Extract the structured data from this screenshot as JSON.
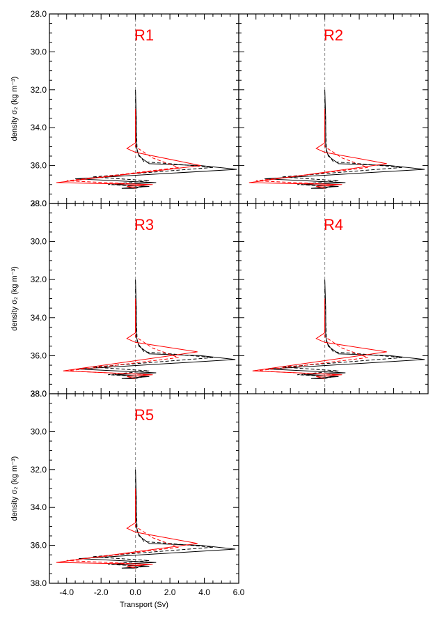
{
  "chart_data": {
    "type": "line",
    "ylabel": "density σ₂ (kg m⁻³)",
    "xlabel": "Transport (Sv)",
    "xlim": [
      -5,
      6
    ],
    "ylim": [
      28,
      38
    ],
    "y_inverted": true,
    "xticks": [
      "-4.0",
      "-2.0",
      "0.0",
      "2.0",
      "4.0",
      "6.0"
    ],
    "yticks": [
      "28.0",
      "30.0",
      "32.0",
      "34.0",
      "36.0",
      "38.0"
    ],
    "colors": {
      "black": "#000000",
      "red": "#ff0000",
      "zero_line": "#888888"
    },
    "panels": [
      {
        "title": "R1",
        "series": [
          {
            "color": "black",
            "style": "solid",
            "points": [
              [
                0,
                32
              ],
              [
                0.05,
                33.5
              ],
              [
                0.05,
                35.0
              ],
              [
                0.2,
                35.5
              ],
              [
                0.8,
                35.9
              ],
              [
                3.8,
                36.0
              ],
              [
                5.9,
                36.2
              ],
              [
                -3.5,
                36.7
              ],
              [
                1.2,
                36.9
              ],
              [
                -1.2,
                37.0
              ],
              [
                0.8,
                37.1
              ],
              [
                -0.8,
                37.2
              ],
              [
                0,
                37.2
              ]
            ]
          },
          {
            "color": "black",
            "style": "dashed",
            "points": [
              [
                0,
                32.5
              ],
              [
                0.05,
                34.0
              ],
              [
                0.1,
                35.3
              ],
              [
                0.5,
                35.8
              ],
              [
                2.0,
                35.9
              ],
              [
                4.5,
                36.1
              ],
              [
                -2.5,
                36.6
              ],
              [
                0.8,
                36.8
              ],
              [
                -1.6,
                37.0
              ],
              [
                0.5,
                37.1
              ],
              [
                0,
                37.2
              ]
            ]
          },
          {
            "color": "red",
            "style": "solid",
            "points": [
              [
                0,
                33.0
              ],
              [
                0,
                34.8
              ],
              [
                -0.5,
                35.1
              ],
              [
                0,
                35.3
              ],
              [
                3.8,
                36.0
              ],
              [
                -4.6,
                36.9
              ],
              [
                1.0,
                37.0
              ],
              [
                -0.5,
                37.1
              ],
              [
                0,
                37.2
              ]
            ]
          },
          {
            "color": "red",
            "style": "dashed",
            "points": [
              [
                0,
                34.0
              ],
              [
                0,
                35.0
              ],
              [
                1.0,
                35.6
              ],
              [
                2.5,
                36.1
              ],
              [
                -2.0,
                36.6
              ],
              [
                -4.0,
                36.8
              ],
              [
                0.7,
                37.0
              ],
              [
                0,
                37.1
              ]
            ]
          }
        ]
      },
      {
        "title": "R2",
        "series": [
          {
            "color": "black",
            "style": "solid",
            "points": [
              [
                0,
                32
              ],
              [
                0.05,
                33.5
              ],
              [
                0.05,
                35.0
              ],
              [
                0.2,
                35.5
              ],
              [
                0.8,
                35.9
              ],
              [
                3.8,
                36.0
              ],
              [
                5.8,
                36.2
              ],
              [
                -3.5,
                36.7
              ],
              [
                1.2,
                36.9
              ],
              [
                -1.2,
                37.0
              ],
              [
                0.8,
                37.1
              ],
              [
                -0.8,
                37.2
              ],
              [
                0,
                37.2
              ]
            ]
          },
          {
            "color": "black",
            "style": "dashed",
            "points": [
              [
                0,
                32.5
              ],
              [
                0.05,
                34.0
              ],
              [
                0.1,
                35.3
              ],
              [
                0.5,
                35.8
              ],
              [
                2.0,
                35.9
              ],
              [
                4.5,
                36.1
              ],
              [
                -2.5,
                36.6
              ],
              [
                0.8,
                36.8
              ],
              [
                -1.6,
                37.0
              ],
              [
                0.5,
                37.1
              ],
              [
                0,
                37.2
              ]
            ]
          },
          {
            "color": "red",
            "style": "solid",
            "points": [
              [
                0,
                33.0
              ],
              [
                0,
                34.8
              ],
              [
                -0.5,
                35.1
              ],
              [
                0,
                35.3
              ],
              [
                3.6,
                35.9
              ],
              [
                -4.4,
                36.9
              ],
              [
                1.0,
                37.0
              ],
              [
                -0.5,
                37.1
              ],
              [
                0,
                37.2
              ]
            ]
          },
          {
            "color": "red",
            "style": "dashed",
            "points": [
              [
                0,
                34.0
              ],
              [
                0,
                35.0
              ],
              [
                1.0,
                35.6
              ],
              [
                2.5,
                36.1
              ],
              [
                -2.0,
                36.6
              ],
              [
                -4.0,
                36.8
              ],
              [
                0.7,
                37.0
              ],
              [
                0,
                37.1
              ]
            ]
          }
        ]
      },
      {
        "title": "R3",
        "series": [
          {
            "color": "black",
            "style": "solid",
            "points": [
              [
                0,
                32
              ],
              [
                0.05,
                33.5
              ],
              [
                0.05,
                35.0
              ],
              [
                0.2,
                35.5
              ],
              [
                0.8,
                35.9
              ],
              [
                3.8,
                36.0
              ],
              [
                5.8,
                36.2
              ],
              [
                -3.3,
                36.7
              ],
              [
                1.2,
                36.9
              ],
              [
                -1.2,
                37.0
              ],
              [
                0.8,
                37.1
              ],
              [
                -0.8,
                37.2
              ],
              [
                0,
                37.2
              ]
            ]
          },
          {
            "color": "black",
            "style": "dashed",
            "points": [
              [
                0,
                32.5
              ],
              [
                0.05,
                34.0
              ],
              [
                0.1,
                35.3
              ],
              [
                0.5,
                35.8
              ],
              [
                2.0,
                35.9
              ],
              [
                4.5,
                36.1
              ],
              [
                -2.5,
                36.6
              ],
              [
                0.8,
                36.8
              ],
              [
                -1.6,
                37.0
              ],
              [
                0.5,
                37.1
              ],
              [
                0,
                37.2
              ]
            ]
          },
          {
            "color": "red",
            "style": "solid",
            "points": [
              [
                0,
                33.0
              ],
              [
                0,
                34.8
              ],
              [
                -0.5,
                35.1
              ],
              [
                0,
                35.3
              ],
              [
                3.6,
                35.8
              ],
              [
                -4.2,
                36.8
              ],
              [
                1.0,
                37.0
              ],
              [
                -0.5,
                37.1
              ],
              [
                0,
                37.2
              ]
            ]
          },
          {
            "color": "red",
            "style": "dashed",
            "points": [
              [
                0,
                34.0
              ],
              [
                0,
                35.0
              ],
              [
                1.0,
                35.6
              ],
              [
                2.5,
                36.1
              ],
              [
                -2.0,
                36.6
              ],
              [
                -4.0,
                36.8
              ],
              [
                0.7,
                37.0
              ],
              [
                0,
                37.1
              ]
            ]
          }
        ]
      },
      {
        "title": "R4",
        "series": [
          {
            "color": "black",
            "style": "solid",
            "points": [
              [
                0,
                32
              ],
              [
                0.05,
                33.5
              ],
              [
                0.05,
                35.0
              ],
              [
                0.2,
                35.5
              ],
              [
                0.8,
                35.9
              ],
              [
                3.8,
                36.0
              ],
              [
                5.8,
                36.2
              ],
              [
                -3.3,
                36.7
              ],
              [
                1.2,
                36.9
              ],
              [
                -1.2,
                37.0
              ],
              [
                0.8,
                37.1
              ],
              [
                -0.8,
                37.2
              ],
              [
                0,
                37.2
              ]
            ]
          },
          {
            "color": "black",
            "style": "dashed",
            "points": [
              [
                0,
                32.5
              ],
              [
                0.05,
                34.0
              ],
              [
                0.1,
                35.3
              ],
              [
                0.5,
                35.8
              ],
              [
                2.0,
                35.9
              ],
              [
                4.5,
                36.1
              ],
              [
                -2.5,
                36.6
              ],
              [
                0.8,
                36.8
              ],
              [
                -1.6,
                37.0
              ],
              [
                0.5,
                37.1
              ],
              [
                0,
                37.2
              ]
            ]
          },
          {
            "color": "red",
            "style": "solid",
            "points": [
              [
                0,
                33.0
              ],
              [
                0,
                34.8
              ],
              [
                -0.5,
                35.1
              ],
              [
                0,
                35.3
              ],
              [
                3.6,
                35.8
              ],
              [
                -4.2,
                36.8
              ],
              [
                1.0,
                37.0
              ],
              [
                -0.5,
                37.1
              ],
              [
                0,
                37.2
              ]
            ]
          },
          {
            "color": "red",
            "style": "dashed",
            "points": [
              [
                0,
                34.0
              ],
              [
                0,
                35.0
              ],
              [
                1.0,
                35.6
              ],
              [
                2.5,
                36.1
              ],
              [
                -2.0,
                36.6
              ],
              [
                -4.0,
                36.8
              ],
              [
                0.7,
                37.0
              ],
              [
                0,
                37.1
              ]
            ]
          }
        ]
      },
      {
        "title": "R5",
        "series": [
          {
            "color": "black",
            "style": "solid",
            "points": [
              [
                0,
                32
              ],
              [
                0.05,
                33.5
              ],
              [
                0.05,
                35.0
              ],
              [
                0.2,
                35.5
              ],
              [
                0.8,
                35.9
              ],
              [
                3.8,
                36.0
              ],
              [
                5.8,
                36.2
              ],
              [
                -3.3,
                36.7
              ],
              [
                1.2,
                36.9
              ],
              [
                -1.2,
                37.0
              ],
              [
                0.8,
                37.1
              ],
              [
                -0.8,
                37.2
              ],
              [
                0,
                37.2
              ]
            ]
          },
          {
            "color": "black",
            "style": "dashed",
            "points": [
              [
                0,
                32.5
              ],
              [
                0.05,
                34.0
              ],
              [
                0.1,
                35.3
              ],
              [
                0.5,
                35.8
              ],
              [
                2.0,
                35.9
              ],
              [
                4.5,
                36.1
              ],
              [
                -2.5,
                36.6
              ],
              [
                0.8,
                36.8
              ],
              [
                -1.6,
                37.0
              ],
              [
                0.5,
                37.1
              ],
              [
                0,
                37.2
              ]
            ]
          },
          {
            "color": "red",
            "style": "solid",
            "points": [
              [
                0,
                33.0
              ],
              [
                0,
                34.8
              ],
              [
                -0.5,
                35.1
              ],
              [
                0,
                35.3
              ],
              [
                3.6,
                35.9
              ],
              [
                -4.6,
                36.9
              ],
              [
                1.0,
                37.0
              ],
              [
                -0.5,
                37.1
              ],
              [
                0,
                37.2
              ]
            ]
          },
          {
            "color": "red",
            "style": "dashed",
            "points": [
              [
                0,
                34.0
              ],
              [
                0,
                35.0
              ],
              [
                1.0,
                35.6
              ],
              [
                2.5,
                36.1
              ],
              [
                -2.0,
                36.6
              ],
              [
                -4.0,
                36.8
              ],
              [
                0.7,
                37.0
              ],
              [
                0,
                37.1
              ]
            ]
          }
        ]
      }
    ]
  }
}
